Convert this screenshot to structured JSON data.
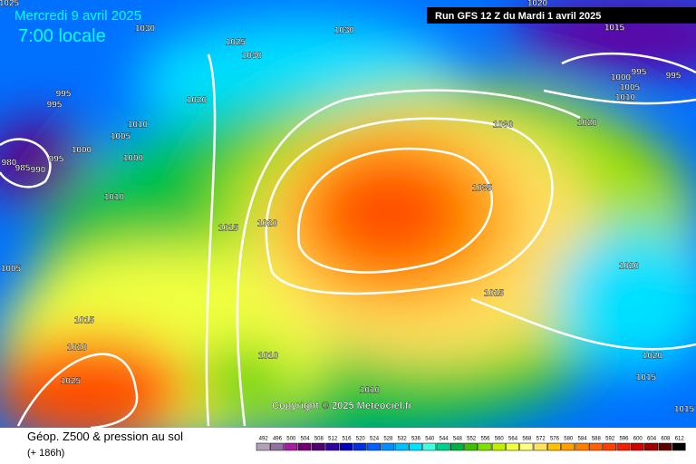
{
  "header": {
    "date": "Mercredi 9 avril 2025",
    "time": "7:00 locale",
    "run": "Run GFS 12 Z du Mardi 1 avril 2025"
  },
  "footer": {
    "title": "Géop. Z500 & pression au sol",
    "lead": "(+ 186h)",
    "copyright": "Copyright © 2025 Meteociel.fr"
  },
  "isobar_labels": [
    1025,
    1030,
    1025,
    1030,
    1030,
    1020,
    995,
    995,
    1010,
    1005,
    1000,
    1000,
    995,
    980,
    985,
    990,
    1010,
    1015,
    1020,
    1005,
    1015,
    1020,
    1025,
    1010,
    1010,
    1030,
    1020,
    1035,
    1025,
    1020,
    1020,
    1015,
    1010,
    1005,
    1000,
    995,
    995,
    1015,
    1020,
    1015
  ],
  "scale": {
    "values": [
      492,
      496,
      500,
      504,
      508,
      512,
      516,
      520,
      524,
      528,
      532,
      536,
      540,
      544,
      548,
      552,
      556,
      560,
      564,
      568,
      572,
      576,
      580,
      584,
      588,
      592,
      596,
      600,
      604,
      608,
      612
    ],
    "colors": [
      "#b0a0b8",
      "#9070a0",
      "#a020a0",
      "#700070",
      "#500070",
      "#3000a0",
      "#0000c0",
      "#0030e0",
      "#0060ff",
      "#0090ff",
      "#00c0ff",
      "#00e0ff",
      "#40ffe0",
      "#00d090",
      "#00b040",
      "#40c000",
      "#80e000",
      "#c0f000",
      "#f0ff40",
      "#ffff80",
      "#ffe060",
      "#ffc000",
      "#ffa000",
      "#ff8000",
      "#ff6000",
      "#ff4000",
      "#f02000",
      "#d00000",
      "#a00000",
      "#600000",
      "#000000"
    ]
  }
}
